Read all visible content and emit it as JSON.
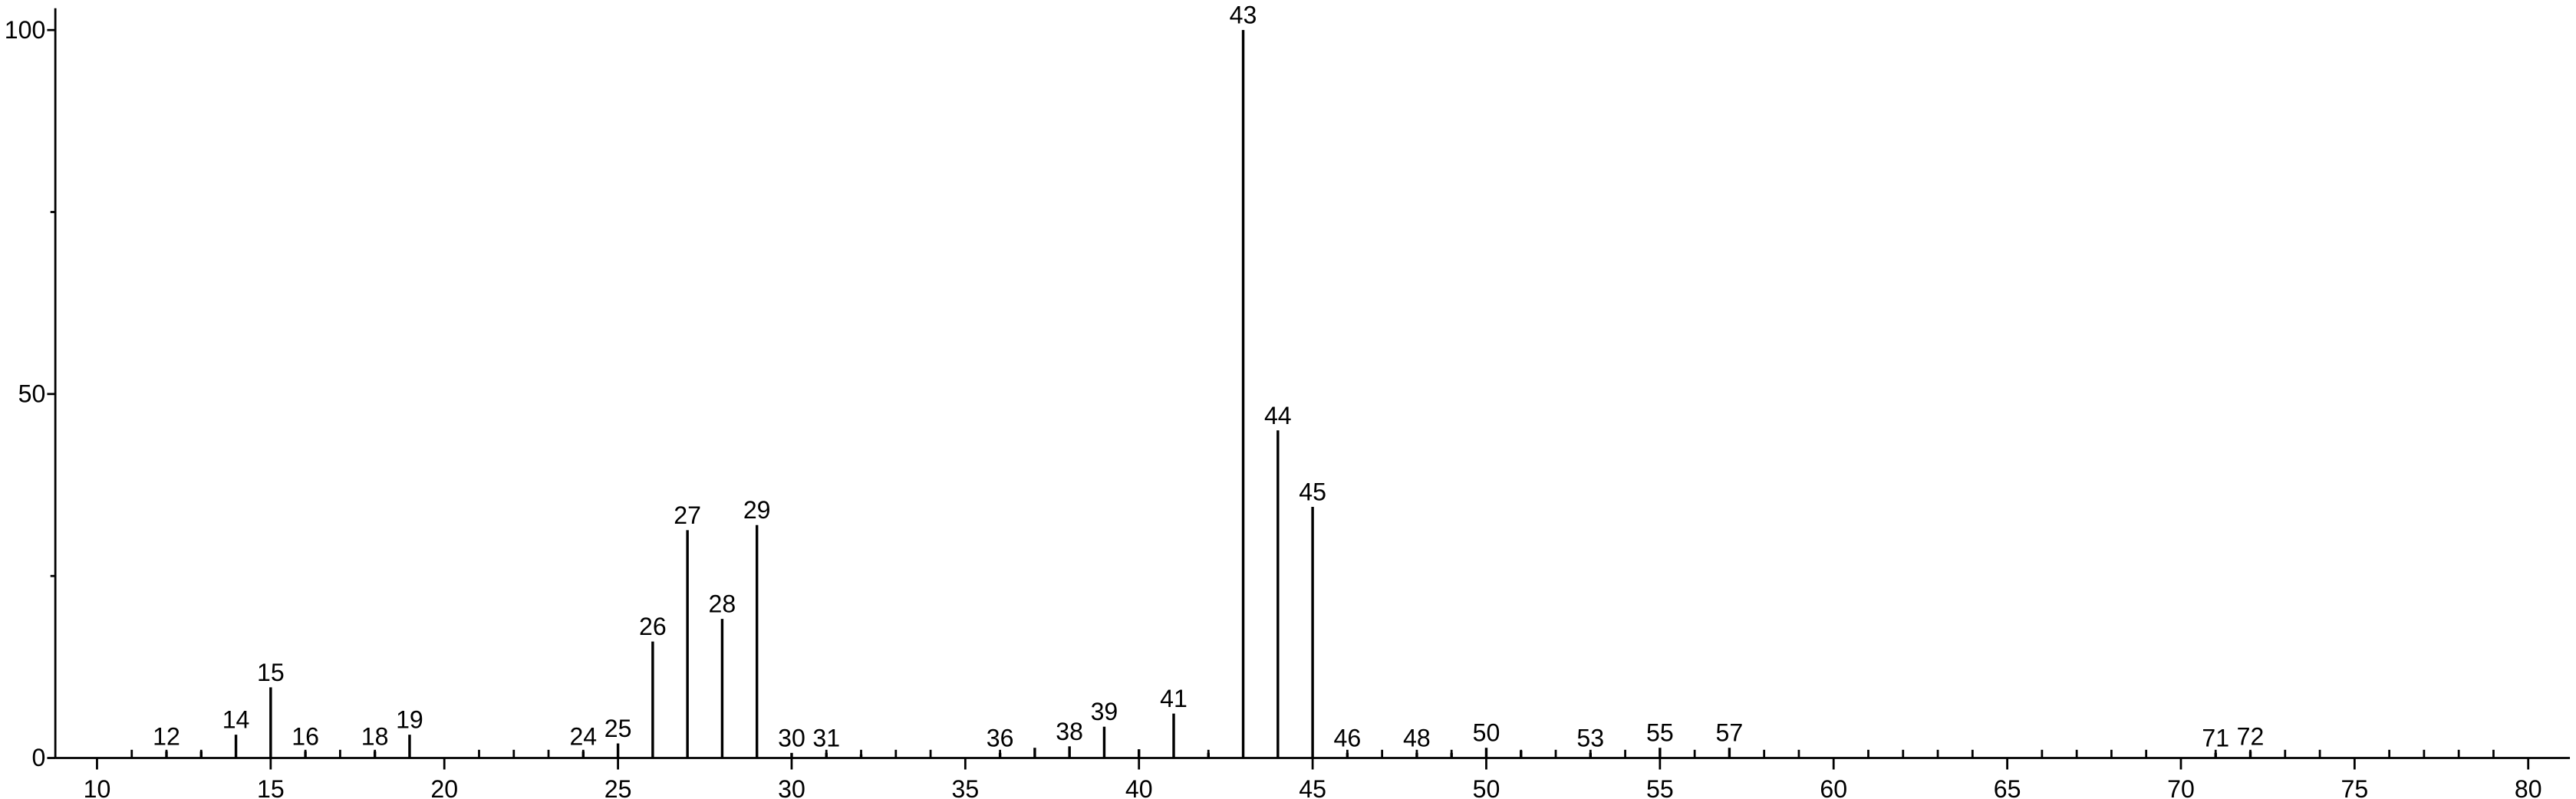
{
  "chart_data": {
    "type": "stick",
    "series": [
      {
        "name": "labeled peaks",
        "color": "#000000",
        "x": [
          12,
          14,
          15,
          16,
          18,
          19,
          24,
          25,
          26,
          27,
          28,
          29,
          30,
          31,
          36,
          38,
          39,
          41,
          43,
          44,
          45,
          46,
          48,
          50,
          53,
          55,
          57,
          71,
          72
        ],
        "values": [
          0.9,
          3.2,
          9.7,
          0.9,
          0.9,
          3.2,
          0.9,
          2.0,
          16.0,
          31.3,
          19.1,
          32.0,
          0.7,
          0.7,
          0.7,
          1.6,
          4.3,
          6.1,
          100,
          45,
          34.5,
          0.7,
          0.7,
          1.4,
          0.7,
          1.4,
          1.4,
          0.7,
          0.9
        ]
      },
      {
        "name": "unlabeled peaks",
        "color": "#000000",
        "x": [
          13,
          32,
          37,
          40,
          42,
          49,
          51
        ],
        "values": [
          0.9,
          0.5,
          1.4,
          1.2,
          0.7,
          0.7,
          1.0
        ]
      }
    ],
    "xlim": [
      8.8,
      81.2
    ],
    "ylim": [
      0,
      103
    ],
    "xticks": [
      10,
      15,
      20,
      25,
      30,
      35,
      40,
      45,
      50,
      55,
      60,
      65,
      70,
      75,
      80
    ],
    "xticks_minor": [
      11,
      12,
      13,
      14,
      16,
      17,
      18,
      19,
      21,
      22,
      23,
      24,
      26,
      27,
      28,
      29,
      31,
      32,
      33,
      34,
      36,
      37,
      38,
      39,
      41,
      42,
      43,
      44,
      46,
      47,
      48,
      49,
      51,
      52,
      53,
      54,
      56,
      57,
      58,
      59,
      61,
      62,
      63,
      64,
      66,
      67,
      68,
      69,
      71,
      72,
      73,
      74,
      76,
      77,
      78,
      79
    ],
    "yticks": [
      0,
      50,
      100
    ],
    "yticks_minor": [
      25,
      75
    ]
  }
}
